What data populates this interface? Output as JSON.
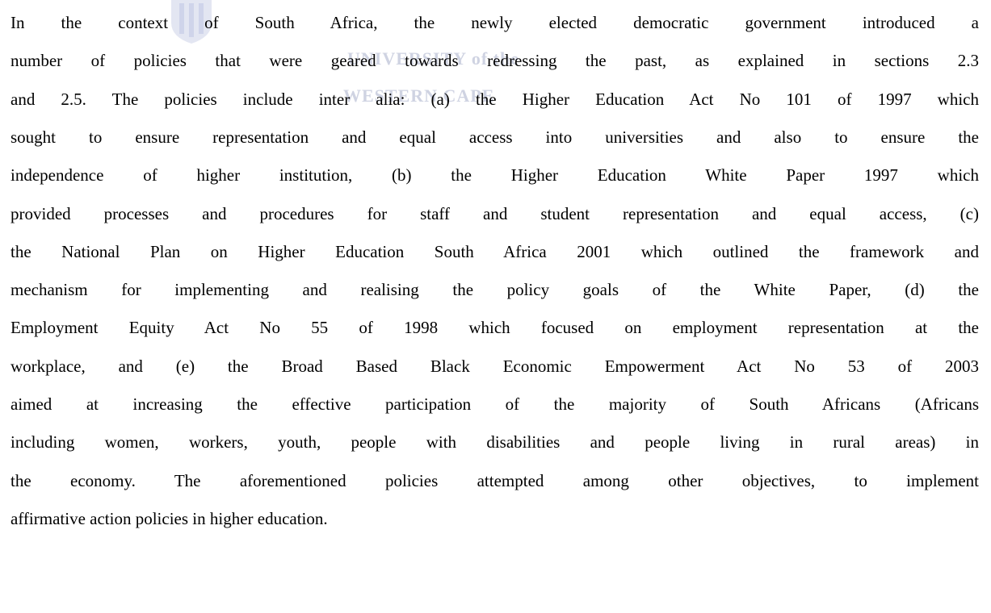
{
  "watermark": {
    "line1": "UNIVERSITY of the",
    "line2": "WESTERN CAPE"
  },
  "paragraph": {
    "lines": [
      "In the context of South Africa, the newly elected democratic government introduced a",
      "number of policies that were geared towards redressing the past, as explained in sections 2.3",
      "and 2.5. The policies include inter alia: (a) the Higher Education Act No 101 of 1997 which",
      "sought to  ensure representation and equal access into universities and also to ensure the",
      "independence of higher institution, (b) the Higher Education White Paper 1997 which",
      "provided processes and procedures for staff and student representation and equal access,  (c)",
      "the National Plan on Higher Education South Africa 2001 which outlined the framework and",
      "mechanism for implementing and realising the policy goals of the White Paper, (d) the",
      "Employment Equity Act No 55 of 1998 which focused on employment representation at the",
      "workplace, and (e) the Broad Based Black Economic Empowerment Act No 53 of 2003",
      "aimed at increasing the effective participation of the majority of South Africans (Africans",
      "including women, workers, youth, people with disabilities and people living in rural areas)  in",
      "the economy. The aforementioned policies attempted among other objectives, to implement",
      "affirmative action policies in higher education."
    ]
  }
}
